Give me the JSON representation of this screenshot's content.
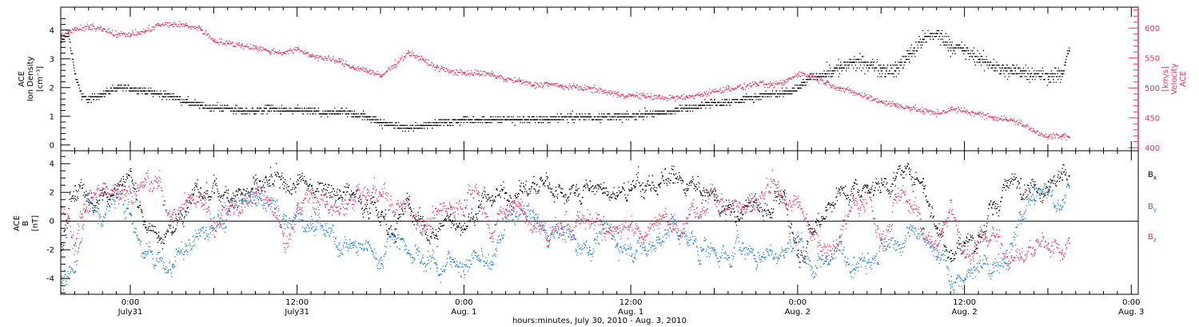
{
  "xlabel": "hours:minutes, July 30, 2010 - Aug.  3, 2010",
  "x_ticks": [
    {
      "t": 5,
      "line1": "0:00",
      "line2": "July31"
    },
    {
      "t": 17,
      "line1": "12:00",
      "line2": "July31"
    },
    {
      "t": 29,
      "line1": "0:00",
      "line2": "Aug. 1"
    },
    {
      "t": 41,
      "line1": "12:00",
      "line2": "Aug. 1"
    },
    {
      "t": 53,
      "line1": "0:00",
      "line2": "Aug. 2"
    },
    {
      "t": 65,
      "line1": "12:00",
      "line2": "Aug. 2"
    },
    {
      "t": 77,
      "line1": "0:00",
      "line2": "Aug. 3"
    }
  ],
  "xlim": [
    0,
    77.5
  ],
  "colors": {
    "density": "#000000",
    "velocity": "#e8335f",
    "bx": "#000000",
    "by": "#1f7fdc",
    "bz": "#e8335f"
  },
  "chart_data": [
    {
      "type": "scatter",
      "panel": "top",
      "ylabel_left": [
        "ACE",
        "Ion Density",
        "[cm⁻³]"
      ],
      "ylabel_right": [
        "ACE",
        "Velocity",
        "[km/s]"
      ],
      "ylim_left": [
        -0.2,
        4.8
      ],
      "yticks_left": [
        0,
        1,
        2,
        3,
        4
      ],
      "ylim_right": [
        395,
        635
      ],
      "yticks_right": [
        400,
        450,
        500,
        550,
        600
      ],
      "series": [
        {
          "key": "density",
          "axis": "left",
          "x": [
            0,
            0.5,
            1,
            1.5,
            2,
            3,
            4,
            5,
            6,
            7,
            8,
            9,
            10,
            11,
            12,
            13,
            14,
            15,
            16,
            17,
            18,
            19,
            20,
            21,
            22,
            23,
            24,
            25,
            26,
            27,
            28,
            29,
            30,
            31,
            32,
            33,
            34,
            35,
            36,
            37,
            38,
            39,
            40,
            41,
            42,
            43,
            44,
            45,
            46,
            47,
            48,
            49,
            50,
            51,
            52,
            53,
            54,
            55,
            56,
            57,
            58,
            59,
            60,
            61,
            62,
            63,
            64,
            65,
            66,
            67,
            68,
            69,
            70,
            71,
            72,
            72.5
          ],
          "y": [
            3.6,
            3.9,
            2.5,
            1.7,
            1.6,
            1.8,
            2.0,
            2.0,
            1.9,
            1.8,
            1.7,
            1.5,
            1.4,
            1.3,
            1.3,
            1.2,
            1.2,
            1.3,
            1.2,
            1.2,
            1.2,
            1.1,
            1.2,
            1.1,
            1.0,
            0.8,
            0.7,
            0.6,
            0.7,
            0.8,
            0.8,
            0.9,
            0.9,
            0.9,
            0.9,
            0.9,
            0.9,
            0.9,
            1.0,
            1.0,
            1.0,
            1.0,
            1.0,
            1.0,
            1.1,
            1.1,
            1.2,
            1.3,
            1.4,
            1.5,
            1.5,
            1.6,
            1.7,
            1.8,
            1.8,
            2.0,
            2.4,
            2.5,
            2.7,
            2.9,
            2.8,
            2.7,
            2.6,
            3.2,
            3.7,
            3.9,
            3.5,
            3.3,
            3.0,
            2.8,
            2.6,
            2.6,
            2.5,
            2.4,
            2.5,
            3.3
          ]
        },
        {
          "key": "velocity",
          "axis": "right",
          "x": [
            0,
            1,
            2,
            3,
            4,
            5,
            6,
            7,
            8,
            9,
            10,
            11,
            12,
            13,
            14,
            15,
            16,
            17,
            18,
            19,
            20,
            21,
            22,
            23,
            24,
            25,
            26,
            27,
            28,
            29,
            30,
            31,
            32,
            33,
            34,
            35,
            36,
            37,
            38,
            39,
            40,
            41,
            42,
            43,
            44,
            45,
            46,
            47,
            48,
            49,
            50,
            51,
            52,
            53,
            54,
            55,
            56,
            57,
            58,
            59,
            60,
            61,
            62,
            63,
            64,
            65,
            66,
            67,
            68,
            69,
            70,
            71,
            72,
            72.5
          ],
          "y": [
            590,
            598,
            602,
            600,
            590,
            590,
            595,
            606,
            607,
            605,
            600,
            580,
            575,
            572,
            568,
            562,
            560,
            565,
            555,
            550,
            545,
            535,
            530,
            520,
            540,
            560,
            548,
            535,
            528,
            526,
            525,
            523,
            515,
            512,
            505,
            508,
            503,
            502,
            500,
            495,
            490,
            488,
            487,
            485,
            484,
            485,
            490,
            495,
            500,
            502,
            508,
            505,
            510,
            525,
            520,
            510,
            500,
            493,
            485,
            478,
            472,
            468,
            462,
            458,
            465,
            462,
            457,
            452,
            448,
            442,
            428,
            420,
            420,
            418
          ]
        }
      ]
    },
    {
      "type": "scatter",
      "panel": "bottom",
      "ylabel_left": [
        "ACE",
        "B",
        "[nT]"
      ],
      "ylim": [
        -5.1,
        4.9
      ],
      "yticks": [
        -4,
        -2,
        0,
        2,
        4
      ],
      "legend": "right",
      "series": [
        {
          "key": "bx",
          "name": "Bx",
          "legend": {
            "base": "B",
            "sub": "x"
          },
          "x": [
            0,
            1,
            2,
            3,
            4,
            5,
            6,
            7,
            8,
            9,
            10,
            11,
            12,
            13,
            14,
            15,
            16,
            17,
            18,
            19,
            20,
            21,
            22,
            23,
            24,
            25,
            26,
            27,
            28,
            29,
            30,
            31,
            32,
            33,
            34,
            35,
            36,
            37,
            38,
            39,
            40,
            41,
            42,
            43,
            44,
            45,
            46,
            47,
            48,
            49,
            50,
            51,
            52,
            53,
            54,
            55,
            56,
            57,
            58,
            59,
            60,
            61,
            62,
            63,
            64,
            65,
            66,
            67,
            68,
            69,
            70,
            71,
            72,
            72.5
          ],
          "y": [
            -2.0,
            2.5,
            1.5,
            1.8,
            2.5,
            3.5,
            0.0,
            -1.0,
            -0.8,
            1.5,
            1.8,
            2.0,
            2.2,
            2.0,
            2.3,
            2.5,
            2.3,
            2.6,
            2.5,
            2.6,
            2.2,
            2.0,
            1.5,
            0.5,
            -0.5,
            1.2,
            -0.5,
            -1.0,
            0.5,
            -0.5,
            1.0,
            1.8,
            2.0,
            2.2,
            2.3,
            2.5,
            2.0,
            2.2,
            2.3,
            2.0,
            1.8,
            2.2,
            2.5,
            2.6,
            2.7,
            2.6,
            2.0,
            1.5,
            1.0,
            0.5,
            1.5,
            0.5,
            2.0,
            -2.0,
            -0.5,
            1.0,
            2.0,
            2.3,
            2.5,
            2.7,
            3.0,
            3.3,
            3.0,
            -0.5,
            -2.0,
            -1.5,
            -1.0,
            0.5,
            2.5,
            3.0,
            2.5,
            2.8,
            2.9,
            3.2
          ]
        },
        {
          "key": "by",
          "name": "By",
          "legend": {
            "base": "B",
            "sub": "y"
          },
          "x": [
            0,
            1,
            2,
            3,
            4,
            5,
            6,
            7,
            8,
            9,
            10,
            11,
            12,
            13,
            14,
            15,
            16,
            17,
            18,
            19,
            20,
            21,
            22,
            23,
            24,
            25,
            26,
            27,
            28,
            29,
            30,
            31,
            32,
            33,
            34,
            35,
            36,
            37,
            38,
            39,
            40,
            41,
            42,
            43,
            44,
            45,
            46,
            47,
            48,
            49,
            50,
            51,
            52,
            53,
            54,
            55,
            56,
            57,
            58,
            59,
            60,
            61,
            62,
            63,
            64,
            65,
            66,
            67,
            68,
            69,
            70,
            71,
            72,
            72.5
          ],
          "y": [
            -3.8,
            -3.5,
            1.5,
            0.0,
            2.5,
            0.5,
            -2.5,
            -2.8,
            -3.0,
            -2.0,
            -1.0,
            -0.5,
            0.5,
            1.5,
            1.8,
            1.2,
            0.5,
            0.8,
            -0.5,
            -1.0,
            -1.5,
            -1.8,
            -2.0,
            -2.5,
            -0.5,
            -2.0,
            -2.5,
            -3.0,
            -2.8,
            -3.0,
            -2.7,
            -3.0,
            0.0,
            0.5,
            0.3,
            -1.0,
            -0.5,
            -1.2,
            -1.8,
            -0.5,
            -1.5,
            -1.8,
            -2.0,
            -1.5,
            0.0,
            -1.5,
            -1.8,
            -2.0,
            -2.5,
            -1.5,
            -2.8,
            -2.0,
            -2.5,
            -1.0,
            -3.2,
            -2.5,
            -2.0,
            -2.5,
            -2.2,
            -1.5,
            -2.0,
            -1.0,
            -1.2,
            -2.5,
            -3.8,
            -4.0,
            -3.5,
            -3.0,
            -2.0,
            0.5,
            1.5,
            2.0,
            1.5,
            2.5
          ]
        },
        {
          "key": "bz",
          "name": "Bz",
          "legend": {
            "base": "B",
            "sub": "z"
          },
          "x": [
            0,
            1,
            2,
            3,
            4,
            5,
            6,
            7,
            8,
            9,
            10,
            11,
            12,
            13,
            14,
            15,
            16,
            17,
            18,
            19,
            20,
            21,
            22,
            23,
            24,
            25,
            26,
            27,
            28,
            29,
            30,
            31,
            32,
            33,
            34,
            35,
            36,
            37,
            38,
            39,
            40,
            41,
            42,
            43,
            44,
            45,
            46,
            47,
            48,
            49,
            50,
            51,
            52,
            53,
            54,
            55,
            56,
            57,
            58,
            59,
            60,
            61,
            62,
            63,
            64,
            65,
            66,
            67,
            68,
            69,
            70,
            71,
            72,
            72.5
          ],
          "y": [
            1.0,
            -1.5,
            2.0,
            2.0,
            2.5,
            2.0,
            3.0,
            2.5,
            0.5,
            1.5,
            1.8,
            0.0,
            1.5,
            0.8,
            2.0,
            1.5,
            -1.5,
            1.0,
            2.0,
            1.0,
            0.5,
            1.5,
            2.0,
            1.8,
            0.5,
            1.5,
            -0.5,
            0.5,
            1.0,
            1.5,
            2.0,
            -0.8,
            0.8,
            1.2,
            -0.5,
            -1.0,
            -0.5,
            -0.3,
            0.5,
            -0.2,
            -0.5,
            0.0,
            -1.0,
            0.5,
            -0.5,
            0.2,
            0.5,
            1.8,
            1.5,
            1.0,
            1.0,
            2.0,
            1.5,
            1.0,
            -0.5,
            -1.8,
            -1.0,
            1.5,
            2.0,
            -1.5,
            1.5,
            1.5,
            -0.5,
            -2.0,
            1.5,
            -2.5,
            -1.5,
            -0.8,
            -2.0,
            -2.5,
            -2.0,
            -1.5,
            -2.0,
            -1.5
          ]
        }
      ]
    }
  ]
}
